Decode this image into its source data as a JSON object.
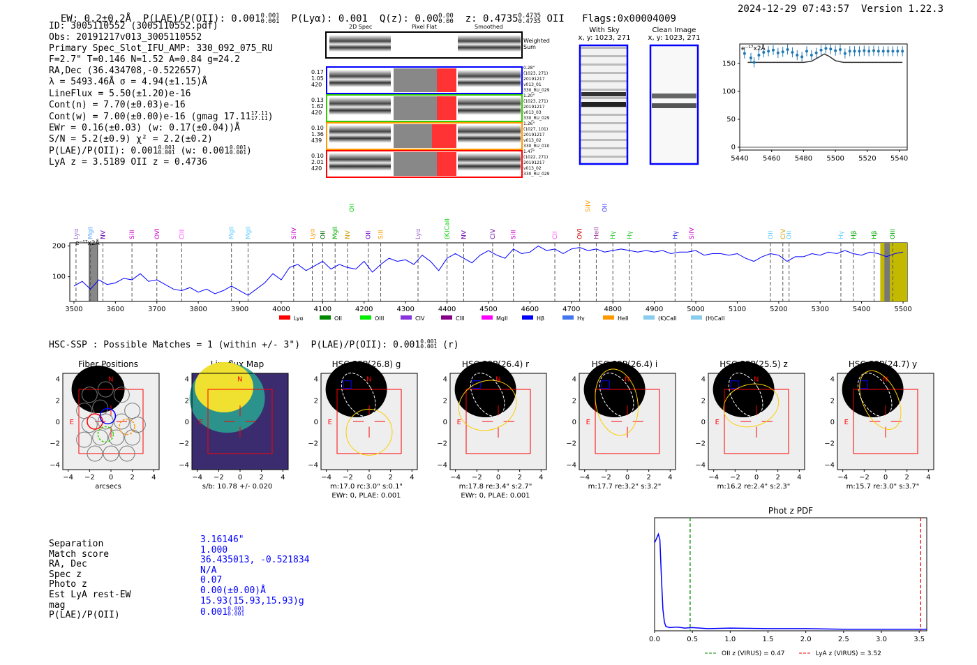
{
  "header": {
    "ew": "EW: 0.2±0.2Å",
    "plae_label": "P(LAE)/P(OII): 0.001",
    "plae_sup": "0.001",
    "plae_sub": "0.001",
    "plya": "P(Lyα): 0.001",
    "qz_label": "Q(z): 0.00",
    "qz_sup": "0.00",
    "qz_sub": "0.00",
    "z_label": "z: 0.4735",
    "z_sup": "0.4735",
    "z_sub": "0.4735",
    "z_line": "OII",
    "flags": "Flags:0x00004009",
    "timestamp": "2024-12-29 07:43:57",
    "version": "Version 1.22.3"
  },
  "info": {
    "lines": [
      "ID: 3005110552 (3005110552.pdf)",
      "Obs: 20191217v013_3005110552",
      "Primary Spec_Slot_IFU_AMP: 330_092_075_RU",
      "F=2.7\"  T=0.146  N=1.52  A=0.84  g=24.2",
      "RA,Dec (36.434708,-0.522657)",
      "λ = 5493.46Å  σ = 4.94(±1.15)Å",
      "LineFlux = 5.50(±1.20)e-16",
      "Cont(n) = 7.70(±0.03)e-16",
      "Cont(w) = 7.00(±0.00)e-16 (gmag 17.11",
      "EWr = 0.16(±0.03) (w: 0.17(±0.04))Å",
      "S/N = 5.2(±0.9)  χ² = 2.2(±0.2)",
      "P(LAE)/P(OII): 0.001",
      "LyA z = 3.5189  OII z = 0.4736"
    ],
    "gmag_sup": "17.11",
    "gmag_sub": "17.11",
    "plae_tail": "(w: 0.001",
    "plae_sup": "0.001",
    "plae_sub": "0.001",
    "plae_w_sup": "0.001",
    "plae_w_sub": "0.001"
  },
  "stamps": {
    "col_2d": "2D Spec",
    "col_flat": "Pixel Flat",
    "col_smooth": "Smoothed",
    "weighted": "Weighted Sum",
    "rows": [
      {
        "left": [
          "0.17",
          "1.05",
          "420"
        ],
        "right": [
          "0.28\"",
          "(1023, 271)",
          "20191217",
          "v013_01",
          "330_RU_029"
        ],
        "color": "#0000ff"
      },
      {
        "left": [
          "0.13",
          "1.62",
          "420"
        ],
        "right": [
          "1.20\"",
          "(1023, 271)",
          "20191217",
          "v013_03",
          "330_RU_029"
        ],
        "color": "#33cc00"
      },
      {
        "left": [
          "0.10",
          "1.36",
          "439"
        ],
        "right": [
          "1.26\"",
          "(1027, 101)",
          "20191217",
          "v013_02",
          "330_RU_010"
        ],
        "color": "#ff9900"
      },
      {
        "left": [
          "0.10",
          "2.01",
          "420"
        ],
        "right": [
          "1.47\"",
          "(1022, 271)",
          "20191217",
          "v013_02",
          "330_RU_029"
        ],
        "color": "#ff0000"
      }
    ],
    "with_sky": "With Sky",
    "with_sky_xy": "x, y: 1023, 271",
    "clean": "Clean Image",
    "clean_xy": "x, y: 1023, 271"
  },
  "colors": {
    "spectrum": "#0000ff",
    "ellipse_gold": "#ffcc00",
    "box_red": "#ff0000",
    "olive": "#c2b900"
  },
  "hsc": {
    "header": "HSC-SSP : Possible Matches = 1 (within +/- 3\")  P(LAE)/P(OII): 0.001",
    "header_sup": "0.001",
    "header_sub": "0.001",
    "header_tail": "(r)",
    "panels": [
      {
        "title": "Fiber Positions",
        "caption1": "arcsecs",
        "caption2": ""
      },
      {
        "title": "Lineflux Map",
        "caption1": "s/b: 10.78 +/- 0.020",
        "caption2": ""
      },
      {
        "title": "HSC SSP(26.8) g",
        "caption1": "m:17.0 rc:3.0\"  s:0.1\"",
        "caption2": "EWr: 0, PLAE: 0.001"
      },
      {
        "title": "HSC SSP(26.4) r",
        "caption1": "m:17.8  re:3.4\"  s:2.7\"",
        "caption2": "EWr: 0, PLAE: 0.001"
      },
      {
        "title": "HSC SSP(26.4) i",
        "caption1": "m:17.7  re:3.2\"  s:3.2\"",
        "caption2": ""
      },
      {
        "title": "HSC SSP(25.5) z",
        "caption1": "m:16.2  re:2.4\"  s:2.3\"",
        "caption2": ""
      },
      {
        "title": "HSC SSP(24.7) y",
        "caption1": "m:15.7  re:3.0\"  s:3.7\"",
        "caption2": ""
      }
    ],
    "ticks": [
      "4",
      "2",
      "0",
      "−2",
      "−4"
    ],
    "xticks": [
      "−4",
      "−2",
      "0",
      "2",
      "4"
    ],
    "n_label": "N",
    "e_label": "E"
  },
  "match": {
    "labels": [
      "Separation",
      "Match score",
      "RA, Dec",
      "Spec z",
      "Photo z",
      "Est LyA rest-EW",
      "mag",
      "P(LAE)/P(OII)"
    ],
    "values": [
      "3.16146\"",
      "1.000",
      "36.435013, -0.521834",
      "N/A",
      "0.07",
      "0.00(±0.00)Å",
      "15.93(15.93,15.93)g",
      "0.001"
    ],
    "plae_sup": "0.001",
    "plae_sub": "0.001"
  },
  "chart_data": [
    {
      "type": "line",
      "title": "",
      "xlabel": "",
      "ylabel": "e⁻¹⁷x2Å",
      "xlim": [
        5440,
        5545
      ],
      "ylim": [
        -5,
        185
      ],
      "x_ticks": [
        5440,
        5460,
        5480,
        5500,
        5520,
        5540
      ],
      "y_ticks": [
        0,
        50,
        100,
        150
      ],
      "series": [
        {
          "name": "data",
          "x": [
            5443,
            5447,
            5449,
            5452,
            5455,
            5458,
            5461,
            5464,
            5467,
            5470,
            5473,
            5476,
            5479,
            5482,
            5485,
            5488,
            5491,
            5494,
            5497,
            5500,
            5503,
            5506,
            5509,
            5512,
            5515,
            5518,
            5521,
            5524,
            5527,
            5530,
            5533,
            5536,
            5539,
            5542
          ],
          "y": [
            168,
            160,
            152,
            165,
            170,
            172,
            174,
            169,
            171,
            175,
            170,
            165,
            162,
            172,
            165,
            169,
            174,
            177,
            176,
            173,
            175,
            168,
            172,
            172,
            172,
            173,
            172,
            173,
            172,
            172,
            172,
            172,
            172,
            172
          ]
        },
        {
          "name": "model",
          "x": [
            5445,
            5450,
            5460,
            5470,
            5480,
            5485,
            5490,
            5493,
            5496,
            5500,
            5505,
            5510,
            5520,
            5530,
            5542
          ],
          "y": [
            152,
            152,
            152,
            152,
            152,
            154,
            162,
            167,
            163,
            155,
            152,
            152,
            152,
            152,
            152
          ]
        },
        {
          "name": "baseline",
          "x": [
            5440,
            5545
          ],
          "y": [
            0,
            0
          ]
        }
      ]
    },
    {
      "type": "line",
      "title": "",
      "ylabel": "e⁻¹⁷x2Å",
      "xlim": [
        3490,
        5510
      ],
      "ylim": [
        20,
        210
      ],
      "x_ticks": [
        3500,
        3600,
        3700,
        3800,
        3900,
        4000,
        4100,
        4200,
        4300,
        4400,
        4500,
        4600,
        4700,
        4800,
        4900,
        5000,
        5100,
        5200,
        5300,
        5400,
        5500
      ],
      "y_ticks": [
        100,
        200
      ],
      "series": [
        {
          "name": "spectrum",
          "x": [
            3500,
            3520,
            3540,
            3560,
            3580,
            3600,
            3620,
            3640,
            3660,
            3680,
            3700,
            3720,
            3740,
            3760,
            3780,
            3800,
            3820,
            3840,
            3860,
            3880,
            3900,
            3920,
            3940,
            3960,
            3980,
            4000,
            4020,
            4040,
            4060,
            4080,
            4100,
            4120,
            4140,
            4160,
            4180,
            4200,
            4220,
            4240,
            4260,
            4280,
            4300,
            4320,
            4340,
            4360,
            4380,
            4400,
            4420,
            4440,
            4460,
            4480,
            4500,
            4520,
            4540,
            4560,
            4580,
            4600,
            4620,
            4640,
            4660,
            4680,
            4700,
            4720,
            4740,
            4760,
            4780,
            4800,
            4820,
            4840,
            4860,
            4880,
            4900,
            4920,
            4940,
            4960,
            4980,
            5000,
            5020,
            5040,
            5060,
            5080,
            5100,
            5120,
            5140,
            5160,
            5180,
            5200,
            5220,
            5240,
            5260,
            5280,
            5300,
            5320,
            5340,
            5360,
            5380,
            5400,
            5420,
            5440,
            5460,
            5480,
            5500
          ],
          "y": [
            70,
            85,
            60,
            90,
            75,
            80,
            95,
            90,
            110,
            85,
            90,
            75,
            60,
            55,
            65,
            50,
            60,
            45,
            55,
            70,
            55,
            40,
            60,
            80,
            110,
            90,
            130,
            140,
            120,
            135,
            150,
            125,
            140,
            130,
            125,
            150,
            115,
            140,
            160,
            150,
            155,
            140,
            170,
            150,
            120,
            160,
            175,
            160,
            145,
            170,
            185,
            170,
            160,
            190,
            175,
            180,
            200,
            185,
            190,
            175,
            190,
            195,
            185,
            190,
            180,
            185,
            190,
            185,
            180,
            185,
            180,
            185,
            175,
            180,
            180,
            185,
            170,
            175,
            175,
            170,
            175,
            160,
            150,
            165,
            175,
            170,
            150,
            165,
            165,
            175,
            170,
            180,
            175,
            185,
            175,
            170,
            180,
            175,
            165,
            175,
            180
          ]
        }
      ],
      "line_labels": [
        {
          "x": 3505,
          "label": "Lyα",
          "color": "#9966cc"
        },
        {
          "x": 3540,
          "label": "MgII",
          "color": "#66aaff"
        },
        {
          "x": 3570,
          "label": "NV",
          "color": "#6600aa"
        },
        {
          "x": 3640,
          "label": "SiII",
          "color": "#cc00cc"
        },
        {
          "x": 3700,
          "label": "OVI",
          "color": "#cc00cc"
        },
        {
          "x": 3760,
          "label": "CIII",
          "color": "#ff44ff"
        },
        {
          "x": 3880,
          "label": "MgII",
          "color": "#66ccff"
        },
        {
          "x": 3920,
          "label": "MgII",
          "color": "#66ccff"
        },
        {
          "x": 4030,
          "label": "SiIV",
          "color": "#cc00cc"
        },
        {
          "x": 4075,
          "label": "Lyα",
          "color": "#ff9900"
        },
        {
          "x": 4100,
          "label": "OII",
          "color": "#006600"
        },
        {
          "x": 4130,
          "label": "MgII",
          "color": "#00aa00"
        },
        {
          "x": 4160,
          "label": "NV",
          "color": "#cc9900"
        },
        {
          "x": 4210,
          "label": "OII",
          "color": "#6600cc"
        },
        {
          "x": 4240,
          "label": "SiII",
          "color": "#ff9900"
        },
        {
          "x": 4330,
          "label": "Lyα",
          "color": "#9966cc"
        },
        {
          "x": 4400,
          "label": "(K)CaII",
          "color": "#00cc00"
        },
        {
          "x": 4440,
          "label": "NV",
          "color": "#6600aa"
        },
        {
          "x": 4510,
          "label": "CIV",
          "color": "#6600aa"
        },
        {
          "x": 4560,
          "label": "SiII",
          "color": "#cc00cc"
        },
        {
          "x": 4660,
          "label": "CII",
          "color": "#ff44ff"
        },
        {
          "x": 4720,
          "label": "OVI",
          "color": "#cc0000"
        },
        {
          "x": 4760,
          "label": "HeII",
          "color": "#993399"
        },
        {
          "x": 4800,
          "label": "Hγ",
          "color": "#33cc33"
        },
        {
          "x": 4840,
          "label": "Hγ",
          "color": "#33cc33"
        },
        {
          "x": 4950,
          "label": "Hγ",
          "color": "#3333ff"
        },
        {
          "x": 4990,
          "label": "SiIV",
          "color": "#cc00cc"
        },
        {
          "x": 5180,
          "label": "OII",
          "color": "#66ccff"
        },
        {
          "x": 5210,
          "label": "CIV",
          "color": "#cc9900"
        },
        {
          "x": 5225,
          "label": "OII",
          "color": "#66ccff"
        },
        {
          "x": 5350,
          "label": "Hγ",
          "color": "#66ccff"
        },
        {
          "x": 5380,
          "label": "Hβ",
          "color": "#00aa00"
        },
        {
          "x": 5430,
          "label": "Hβ",
          "color": "#00aa00"
        },
        {
          "x": 5475,
          "label": "OIII",
          "color": "#00aa00"
        }
      ],
      "top_labels": [
        {
          "x": 4170,
          "label": "OII",
          "color": "#00cc00"
        },
        {
          "x": 4740,
          "label": "SiIV",
          "color": "#ff9900"
        },
        {
          "x": 4780,
          "label": "OII",
          "color": "#3333ff"
        }
      ],
      "legend": [
        {
          "label": "Lyα",
          "color": "#ff0000"
        },
        {
          "label": "OII",
          "color": "#008800"
        },
        {
          "label": "OIII",
          "color": "#00ee00"
        },
        {
          "label": "CIV",
          "color": "#8833dd"
        },
        {
          "label": "CIII",
          "color": "#880088"
        },
        {
          "label": "MgII",
          "color": "#ff00ff"
        },
        {
          "label": "Hβ",
          "color": "#0000ff"
        },
        {
          "label": "Hγ",
          "color": "#4477ee"
        },
        {
          "label": "HeII",
          "color": "#ff9900"
        },
        {
          "label": "(K)CaII",
          "color": "#88ccee"
        },
        {
          "label": "(H)CaII",
          "color": "#88ccee"
        }
      ]
    },
    {
      "type": "line",
      "title": "Phot z PDF",
      "xlim": [
        0,
        3.6
      ],
      "x_ticks": [
        0.0,
        0.5,
        1.0,
        1.5,
        2.0,
        2.5,
        3.0,
        3.5
      ],
      "series": [
        {
          "name": "pdf",
          "x": [
            0.0,
            0.02,
            0.05,
            0.07,
            0.09,
            0.11,
            0.13,
            0.15,
            0.2,
            0.3,
            0.4,
            0.5,
            0.7,
            1.0,
            1.5,
            2.0,
            2.5,
            3.0,
            3.5,
            3.6
          ],
          "y": [
            0.82,
            0.85,
            0.9,
            0.85,
            0.5,
            0.2,
            0.08,
            0.04,
            0.03,
            0.035,
            0.025,
            0.03,
            0.02,
            0.025,
            0.02,
            0.02,
            0.015,
            0.015,
            0.015,
            0.015
          ]
        }
      ],
      "vlines": [
        {
          "x": 0.47,
          "label": "OII z (VIRUS) = 0.47",
          "color": "#008800"
        },
        {
          "x": 3.52,
          "label": "LyA z (VIRUS) = 3.52",
          "color": "#ee0000"
        }
      ]
    }
  ]
}
